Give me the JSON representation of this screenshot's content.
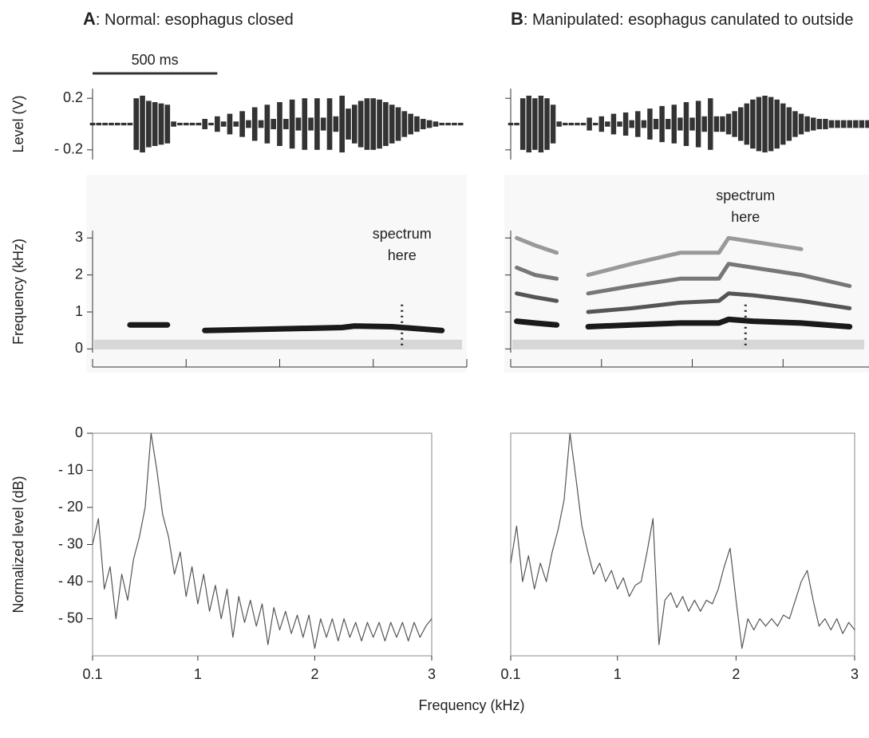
{
  "panels": [
    {
      "letter": "A",
      "title": ": Normal: esophagus closed"
    },
    {
      "letter": "B",
      "title": ": Manipulated: esophagus canulated to outside"
    }
  ],
  "xlabel": "Frequency (kHz)",
  "chart_data": [
    {
      "type": "waveform",
      "ylabel": "Level (V)",
      "color": "#333333",
      "xlim": [
        0,
        1500
      ],
      "ylim": [
        -0.3,
        0.3
      ],
      "yticks": [
        0.2,
        {
          "value": -0.2,
          "label": "- 0.2"
        }
      ],
      "ytick_labels": true,
      "scalebar": {
        "value": 500,
        "label": "500 ms"
      },
      "x": [
        0,
        25,
        50,
        75,
        100,
        125,
        150,
        175,
        200,
        225,
        250,
        275,
        300,
        325,
        350,
        375,
        400,
        425,
        450,
        475,
        500,
        525,
        550,
        575,
        600,
        625,
        650,
        675,
        700,
        725,
        750,
        775,
        800,
        825,
        850,
        875,
        900,
        925,
        950,
        975,
        1000,
        1025,
        1050,
        1075,
        1100,
        1125,
        1150,
        1175,
        1200,
        1225,
        1250,
        1275,
        1300,
        1325,
        1350,
        1375,
        1400,
        1425,
        1450,
        1475
      ],
      "values": [
        0.01,
        0.01,
        0.01,
        0.01,
        0.01,
        0.01,
        0.01,
        0.2,
        0.22,
        0.18,
        0.17,
        0.16,
        0.15,
        0.02,
        0.01,
        0.01,
        0.01,
        0.01,
        0.04,
        0.01,
        0.06,
        0.02,
        0.08,
        0.02,
        0.1,
        0.03,
        0.13,
        0.03,
        0.15,
        0.04,
        0.17,
        0.04,
        0.19,
        0.05,
        0.2,
        0.05,
        0.2,
        0.05,
        0.2,
        0.06,
        0.22,
        0.12,
        0.15,
        0.18,
        0.2,
        0.2,
        0.19,
        0.17,
        0.15,
        0.13,
        0.1,
        0.08,
        0.06,
        0.04,
        0.03,
        0.02,
        0.01,
        0.01,
        0.01,
        0.01
      ]
    },
    {
      "type": "waveform",
      "color": "#333333",
      "xlim": [
        0,
        1480
      ],
      "ylim": [
        -0.3,
        0.3
      ],
      "yticks": [
        0.2,
        -0.2
      ],
      "ytick_labels": false,
      "x": [
        0,
        25,
        50,
        75,
        100,
        125,
        150,
        175,
        200,
        225,
        250,
        275,
        300,
        325,
        350,
        375,
        400,
        425,
        450,
        475,
        500,
        525,
        550,
        575,
        600,
        625,
        650,
        675,
        700,
        725,
        750,
        775,
        800,
        825,
        850,
        875,
        900,
        925,
        950,
        975,
        1000,
        1025,
        1050,
        1075,
        1100,
        1125,
        1150,
        1175,
        1200,
        1225,
        1250,
        1275,
        1300,
        1325,
        1350,
        1375,
        1400,
        1425,
        1450,
        1475
      ],
      "values": [
        0.01,
        0.01,
        0.2,
        0.22,
        0.2,
        0.22,
        0.2,
        0.15,
        0.02,
        0.01,
        0.01,
        0.01,
        0.01,
        0.05,
        0.01,
        0.06,
        0.02,
        0.08,
        0.02,
        0.09,
        0.03,
        0.1,
        0.03,
        0.12,
        0.04,
        0.14,
        0.04,
        0.15,
        0.05,
        0.17,
        0.05,
        0.18,
        0.06,
        0.2,
        0.06,
        0.06,
        0.08,
        0.1,
        0.13,
        0.16,
        0.19,
        0.21,
        0.22,
        0.21,
        0.19,
        0.16,
        0.13,
        0.1,
        0.08,
        0.06,
        0.05,
        0.04,
        0.04,
        0.03,
        0.03,
        0.03,
        0.03,
        0.03,
        0.03,
        0.03
      ]
    },
    {
      "type": "spectrogram",
      "ylabel": "Frequency (kHz)",
      "xlim": [
        0,
        1500
      ],
      "ylim": [
        -0.1,
        3.2
      ],
      "yticks": [
        0,
        1,
        2,
        3
      ],
      "ytick_labels": true,
      "xticks": [
        0,
        375,
        750,
        1125,
        1500
      ],
      "annotation": "spectrum here",
      "annotation_x": 1240,
      "x": [
        150,
        200,
        250,
        300,
        350,
        400,
        450,
        600,
        800,
        1000,
        1050,
        1200,
        1400
      ],
      "series": [
        {
          "color": "#1a1a1a",
          "values": [
            0.65,
            0.65,
            0.65,
            0.65,
            null,
            null,
            0.5,
            0.52,
            0.55,
            0.58,
            0.62,
            0.6,
            0.5
          ]
        }
      ]
    },
    {
      "type": "spectrogram",
      "xlim": [
        0,
        1480
      ],
      "ylim": [
        -0.1,
        3.2
      ],
      "yticks": [
        0,
        1,
        2,
        3
      ],
      "ytick_labels": false,
      "xticks": [
        0,
        375,
        750,
        1125
      ],
      "annotation": "spectrum here",
      "annotation_x": 970,
      "x": [
        25,
        100,
        190,
        210,
        320,
        500,
        700,
        860,
        900,
        1000,
        1200,
        1400
      ],
      "series": [
        {
          "color": "#1a1a1a",
          "values": [
            0.75,
            0.7,
            0.65,
            null,
            0.6,
            0.65,
            0.7,
            0.7,
            0.8,
            0.75,
            0.7,
            0.6
          ]
        },
        {
          "color": "#555555",
          "values": [
            1.5,
            1.4,
            1.3,
            null,
            1.0,
            1.1,
            1.25,
            1.3,
            1.5,
            1.45,
            1.3,
            1.1
          ]
        },
        {
          "color": "#777777",
          "values": [
            2.2,
            2.0,
            1.9,
            null,
            1.5,
            1.7,
            1.9,
            1.9,
            2.3,
            2.2,
            2.0,
            1.7
          ]
        },
        {
          "color": "#999999",
          "values": [
            3.0,
            2.8,
            2.6,
            null,
            2.0,
            2.3,
            2.6,
            2.6,
            3.0,
            2.9,
            2.7,
            null
          ]
        }
      ]
    },
    {
      "type": "spectrum",
      "ylabel": "Normalized level (dB)",
      "color": "#555555",
      "xlim": [
        0.1,
        3
      ],
      "ylim": [
        -60,
        0
      ],
      "xticks": [
        0.1,
        1,
        2,
        3
      ],
      "yticks": [
        0,
        {
          "value": -10,
          "label": "- 10"
        },
        {
          "value": -20,
          "label": "- 20"
        },
        {
          "value": -30,
          "label": "- 30"
        },
        {
          "value": -40,
          "label": "- 40"
        },
        {
          "value": -50,
          "label": "- 50"
        }
      ],
      "ytick_labels": true,
      "x": [
        0.1,
        0.15,
        0.2,
        0.25,
        0.3,
        0.35,
        0.4,
        0.45,
        0.5,
        0.55,
        0.6,
        0.65,
        0.7,
        0.75,
        0.8,
        0.85,
        0.9,
        0.95,
        1.0,
        1.05,
        1.1,
        1.15,
        1.2,
        1.25,
        1.3,
        1.35,
        1.4,
        1.45,
        1.5,
        1.55,
        1.6,
        1.65,
        1.7,
        1.75,
        1.8,
        1.85,
        1.9,
        1.95,
        2.0,
        2.05,
        2.1,
        2.15,
        2.2,
        2.25,
        2.3,
        2.35,
        2.4,
        2.45,
        2.5,
        2.55,
        2.6,
        2.65,
        2.7,
        2.75,
        2.8,
        2.85,
        2.9,
        2.95,
        3.0
      ],
      "values": [
        -30,
        -23,
        -42,
        -36,
        -50,
        -38,
        -45,
        -34,
        -28,
        -20,
        0,
        -10,
        -22,
        -28,
        -38,
        -32,
        -44,
        -36,
        -46,
        -38,
        -48,
        -41,
        -50,
        -42,
        -55,
        -44,
        -51,
        -45,
        -52,
        -46,
        -57,
        -47,
        -53,
        -48,
        -54,
        -49,
        -55,
        -49,
        -58,
        -50,
        -55,
        -50,
        -56,
        -50,
        -55,
        -51,
        -56,
        -51,
        -55,
        -51,
        -56,
        -51,
        -55,
        -51,
        -56,
        -51,
        -55,
        -52,
        -50
      ]
    },
    {
      "type": "spectrum",
      "color": "#555555",
      "xlim": [
        0.1,
        3
      ],
      "ylim": [
        -60,
        0
      ],
      "xticks": [
        0.1,
        1,
        2,
        3
      ],
      "x": [
        0.1,
        0.15,
        0.2,
        0.25,
        0.3,
        0.35,
        0.4,
        0.45,
        0.5,
        0.55,
        0.6,
        0.65,
        0.7,
        0.75,
        0.8,
        0.85,
        0.9,
        0.95,
        1.0,
        1.05,
        1.1,
        1.15,
        1.2,
        1.25,
        1.3,
        1.35,
        1.4,
        1.45,
        1.5,
        1.55,
        1.6,
        1.65,
        1.7,
        1.75,
        1.8,
        1.85,
        1.9,
        1.95,
        2.0,
        2.05,
        2.1,
        2.15,
        2.2,
        2.25,
        2.3,
        2.35,
        2.4,
        2.45,
        2.5,
        2.55,
        2.6,
        2.65,
        2.7,
        2.75,
        2.8,
        2.85,
        2.9,
        2.95,
        3.0
      ],
      "values": [
        -35,
        -25,
        -40,
        -33,
        -42,
        -35,
        -40,
        -32,
        -26,
        -18,
        0,
        -12,
        -25,
        -32,
        -38,
        -35,
        -40,
        -37,
        -42,
        -39,
        -44,
        -41,
        -40,
        -32,
        -23,
        -57,
        -45,
        -43,
        -47,
        -44,
        -48,
        -45,
        -48,
        -45,
        -46,
        -42,
        -36,
        -31,
        -45,
        -58,
        -50,
        -53,
        -50,
        -52,
        -50,
        -52,
        -49,
        -50,
        -45,
        -40,
        -37,
        -45,
        -52,
        -50,
        -53,
        -50,
        -54,
        -51,
        -53
      ]
    }
  ]
}
